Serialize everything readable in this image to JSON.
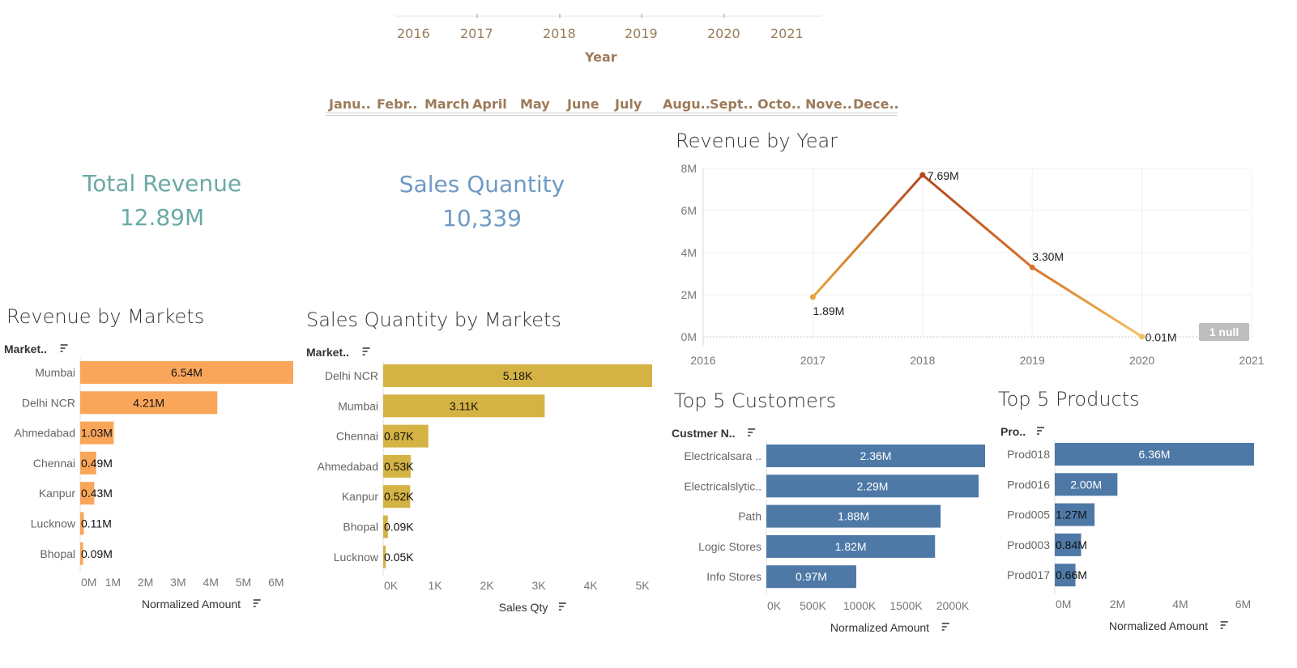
{
  "colors": {
    "filter_text": "#9c7b5a",
    "total_revenue": "#6aaaa5",
    "sales_quantity": "#6f9ac4",
    "revenue_bars": "#f9a65a",
    "qty_bars": "#d4b243",
    "customer_bars": "#4e79a7",
    "product_bars": "#4e79a7",
    "null_badge": "#bdbdbd"
  },
  "year_filter": {
    "years": [
      "2016",
      "2017",
      "2018",
      "2019",
      "2020",
      "2021"
    ],
    "label": "Year"
  },
  "month_filter": {
    "months": [
      "Janu..",
      "Febr..",
      "March",
      "April",
      "May",
      "June",
      "July",
      "Augu..",
      "Sept..",
      "Octo..",
      "Nove..",
      "Dece.."
    ]
  },
  "kpis": {
    "total_revenue_label": "Total Revenue",
    "total_revenue_value": "12.89M",
    "sales_quantity_label": "Sales Quantity",
    "sales_quantity_value": "10,339"
  },
  "null_badge": "1 null",
  "chart_data": [
    {
      "id": "revenue_by_year",
      "type": "line",
      "title": "Revenue by Year",
      "x": [
        2017,
        2018,
        2019,
        2020
      ],
      "values": [
        1.89,
        7.69,
        3.3,
        0.01
      ],
      "data_labels": [
        "1.89M",
        "7.69M",
        "3.30M",
        "0.01M"
      ],
      "unit": "M",
      "xlim": [
        2016,
        2021
      ],
      "ylim": [
        0,
        8
      ],
      "x_ticks": [
        "2016",
        "2017",
        "2018",
        "2019",
        "2020",
        "2021"
      ],
      "y_ticks": [
        "0M",
        "2M",
        "4M",
        "6M",
        "8M"
      ],
      "grid": true
    },
    {
      "id": "revenue_by_markets",
      "type": "bar",
      "orientation": "horizontal",
      "title": "Revenue by Markets",
      "row_header": "Market..",
      "xlabel": "Normalized Amount",
      "categories": [
        "Mumbai",
        "Delhi NCR",
        "Ahmedabad",
        "Chennai",
        "Kanpur",
        "Lucknow",
        "Bhopal"
      ],
      "values": [
        6.54,
        4.21,
        1.03,
        0.49,
        0.43,
        0.11,
        0.09
      ],
      "data_labels": [
        "6.54M",
        "4.21M",
        "1.03M",
        "0.49M",
        "0.43M",
        "0.11M",
        "0.09M"
      ],
      "xlim": [
        0,
        6.54
      ],
      "x_ticks": [
        "0M",
        "1M",
        "2M",
        "3M",
        "4M",
        "5M",
        "6M"
      ]
    },
    {
      "id": "sales_qty_by_markets",
      "type": "bar",
      "orientation": "horizontal",
      "title": "Sales Quantity by Markets",
      "row_header": "Market..",
      "xlabel": "Sales Qty",
      "categories": [
        "Delhi NCR",
        "Mumbai",
        "Chennai",
        "Ahmedabad",
        "Kanpur",
        "Bhopal",
        "Lucknow"
      ],
      "values": [
        5.18,
        3.11,
        0.87,
        0.53,
        0.52,
        0.09,
        0.05
      ],
      "data_labels": [
        "5.18K",
        "3.11K",
        "0.87K",
        "0.53K",
        "0.52K",
        "0.09K",
        "0.05K"
      ],
      "xlim": [
        0,
        5.18
      ],
      "x_ticks": [
        "0K",
        "1K",
        "2K",
        "3K",
        "4K",
        "5K"
      ]
    },
    {
      "id": "top_5_customers",
      "type": "bar",
      "orientation": "horizontal",
      "title": "Top 5 Customers",
      "row_header": "Custmer N..",
      "xlabel": "Normalized Amount",
      "categories": [
        "Electricalsara ..",
        "Electricalslytic..",
        "Path",
        "Logic Stores",
        "Info Stores"
      ],
      "values": [
        2.36,
        2.29,
        1.88,
        1.82,
        0.97
      ],
      "data_labels": [
        "2.36M",
        "2.29M",
        "1.88M",
        "1.82M",
        "0.97M"
      ],
      "xlim": [
        0,
        2.36
      ],
      "x_ticks": [
        "0K",
        "500K",
        "1000K",
        "1500K",
        "2000K"
      ]
    },
    {
      "id": "top_5_products",
      "type": "bar",
      "orientation": "horizontal",
      "title": "Top 5 Products",
      "row_header": "Pro..",
      "xlabel": "Normalized Amount",
      "categories": [
        "Prod018",
        "Prod016",
        "Prod005",
        "Prod003",
        "Prod017"
      ],
      "values": [
        6.36,
        2.0,
        1.27,
        0.84,
        0.66
      ],
      "data_labels": [
        "6.36M",
        "2.00M",
        "1.27M",
        "0.84M",
        "0.66M"
      ],
      "xlim": [
        0,
        6.36
      ],
      "x_ticks": [
        "0M",
        "2M",
        "4M",
        "6M"
      ]
    }
  ]
}
